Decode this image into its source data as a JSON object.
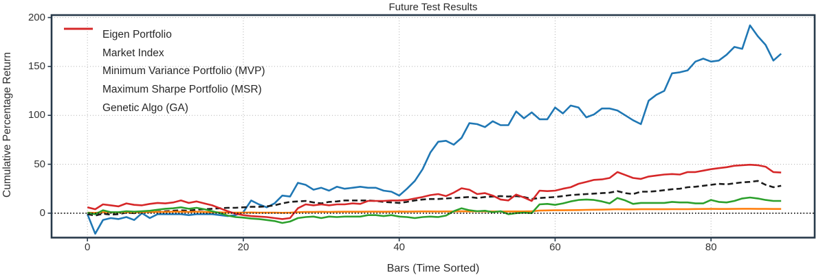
{
  "figure": {
    "background": "#ffffff"
  },
  "chart_data": {
    "type": "line",
    "title": "Future Test Results",
    "xlabel": "Bars (Time Sorted)",
    "ylabel": "Cumulative Percentage Return",
    "xlim": [
      -4.6,
      93.3
    ],
    "ylim": [
      -25,
      202.5
    ],
    "xticks": [
      0,
      20,
      40,
      60,
      80
    ],
    "yticks": [
      0,
      50,
      100,
      150,
      200
    ],
    "grid": "dotted",
    "zero_line": true,
    "legend_position": "upper-left",
    "colors": {
      "spine": "#27394a",
      "grid": "#b0b0b0",
      "zero_line": "#111111",
      "text": "#2e2e2e"
    },
    "x_start": 0,
    "series": [
      {
        "name": "Eigen Portfolio",
        "color": "#1f77b4",
        "style": "solid",
        "values": [
          -1,
          -21,
          -7,
          -5,
          -6,
          -4,
          -7,
          0,
          -5,
          -1,
          -1,
          -1,
          -1,
          -2,
          -1,
          -1,
          -1,
          -2,
          -3,
          -2,
          1,
          13,
          9,
          6,
          10,
          18,
          17,
          31,
          29,
          24,
          26,
          23,
          27,
          25,
          26,
          27,
          26,
          26,
          23,
          22,
          18,
          25,
          33,
          45,
          62,
          73,
          74,
          70,
          77,
          92,
          91,
          88,
          94,
          90,
          90,
          104,
          97,
          103,
          96,
          96,
          108,
          102,
          110,
          108,
          98,
          101,
          107,
          107,
          105,
          100,
          95,
          91,
          115,
          121,
          125,
          143,
          144,
          146,
          155,
          158,
          155,
          156,
          162,
          170,
          168,
          192,
          181,
          172,
          156,
          163
        ]
      },
      {
        "name": "Market Index",
        "color": "#1c1c1c",
        "style": "dashed",
        "values": [
          -1,
          -2.5,
          -0.5,
          -1.5,
          -1,
          0.5,
          0,
          1,
          1,
          1.5,
          2,
          2.5,
          3,
          2.5,
          3.5,
          4,
          4.5,
          5,
          5.5,
          5.5,
          6,
          6.5,
          6.5,
          7,
          8,
          10,
          11.5,
          12,
          12.5,
          11,
          10,
          11.5,
          12,
          13,
          13,
          13,
          13,
          12.5,
          11.5,
          11,
          10.5,
          11.5,
          13,
          14,
          14.5,
          14.5,
          15,
          15.5,
          16,
          16.5,
          15.5,
          16.5,
          17,
          17.5,
          17,
          17.5,
          16.5,
          14.5,
          15.5,
          16,
          16.5,
          17.5,
          18.5,
          19,
          19.5,
          20,
          20.5,
          21,
          22.5,
          20.5,
          19.5,
          22,
          22,
          22.5,
          23.5,
          24.5,
          25,
          26.5,
          27,
          28,
          29,
          30,
          29.5,
          30.5,
          31.5,
          32,
          33,
          29,
          26.5,
          28
        ]
      },
      {
        "name": "Minimum Variance Portfolio (MVP)",
        "color": "#ff7f0e",
        "style": "solid",
        "values": [
          0.5,
          0.3,
          1,
          0.8,
          0.7,
          1,
          0.8,
          1,
          1.2,
          1.2,
          1.3,
          1.5,
          1.5,
          1.3,
          1.5,
          1.2,
          1,
          0.8,
          0.5,
          0.5,
          0.5,
          0.7,
          0.6,
          0.5,
          0.5,
          0.4,
          0.5,
          1,
          1.3,
          1.2,
          1.4,
          1.3,
          1.4,
          1.5,
          1.5,
          1.5,
          1.6,
          1.6,
          1.5,
          1.6,
          1.7,
          1.6,
          1.7,
          1.8,
          1.8,
          1.7,
          1.8,
          1.8,
          1.9,
          1.8,
          1.9,
          1.8,
          1.8,
          1.7,
          1.8,
          1.8,
          1.8,
          1.9,
          2.6,
          2.8,
          3,
          3,
          3.1,
          3.2,
          3.4,
          3.5,
          3.6,
          3.8,
          4,
          3.9,
          3.9,
          4,
          4,
          4,
          4,
          4.1,
          4.1,
          4.1,
          4.2,
          4.3,
          4.4,
          4.3,
          4.3,
          4.4,
          4.5,
          4.5,
          4.4,
          4.4,
          4.3,
          4.3
        ]
      },
      {
        "name": "Maximum Sharpe Portfolio (MSR)",
        "color": "#2ca02c",
        "style": "solid",
        "values": [
          0.5,
          -1,
          3,
          1,
          1,
          2,
          1.5,
          2,
          2.5,
          3.5,
          4.5,
          5,
          6,
          4.5,
          5.5,
          4,
          2,
          0,
          -2.5,
          -4,
          -4.5,
          -5.5,
          -6,
          -7,
          -8,
          -10,
          -8.5,
          -5,
          -4,
          -3.5,
          -5,
          -3.5,
          -4,
          -3.5,
          -3.5,
          -3.5,
          -2,
          -2,
          -3,
          -2,
          -3.5,
          -4,
          -5,
          -4,
          -3.5,
          -4,
          -2.5,
          2,
          5,
          3,
          2,
          2.5,
          1,
          2,
          -1,
          0,
          0.5,
          0,
          9,
          9.5,
          8.5,
          10,
          12,
          13.5,
          14,
          13.5,
          12,
          10,
          15.5,
          13,
          9.5,
          10.5,
          10.5,
          10.5,
          10.5,
          11.5,
          11,
          11,
          10,
          10,
          13.5,
          11.5,
          11,
          12.5,
          15,
          16,
          15,
          13.5,
          12.5,
          12.5
        ]
      },
      {
        "name": "Genetic Algo (GA)",
        "color": "#d62728",
        "style": "solid",
        "values": [
          6,
          4,
          9,
          8,
          7,
          10,
          8.5,
          8,
          9.5,
          10.5,
          10,
          11,
          13,
          10.5,
          12,
          10,
          8,
          5,
          2,
          -0.5,
          -2,
          -3,
          -3.5,
          -4,
          -5,
          -6,
          -5,
          5,
          9,
          8,
          9,
          8,
          9,
          9,
          10,
          9.5,
          12.5,
          12.5,
          12.5,
          13,
          13,
          13.5,
          15,
          16.5,
          18.5,
          19.5,
          17.5,
          21,
          25.5,
          24,
          19.5,
          20.5,
          18,
          14,
          13,
          19,
          16,
          12.5,
          23,
          22.5,
          23,
          25,
          26.5,
          30,
          32,
          34,
          34.5,
          36,
          42,
          39,
          36,
          35,
          37.5,
          38.5,
          39.5,
          40,
          39.5,
          42,
          42,
          43.5,
          45,
          46,
          47,
          48.5,
          49,
          49.5,
          49,
          47.5,
          42,
          41.5
        ]
      }
    ]
  }
}
